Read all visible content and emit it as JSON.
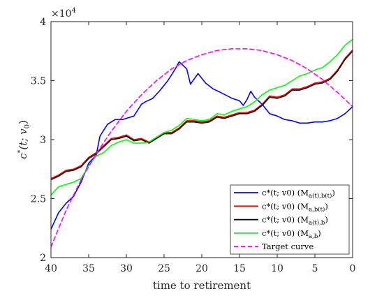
{
  "chart_data": {
    "type": "line",
    "title": "",
    "xlabel": "time to retirement",
    "ylabel": "c*(t; v0)",
    "ylabel_parts": {
      "base": "c",
      "star": "*",
      "args": "(t; v",
      "args_sub": "0",
      "args_close": ")"
    },
    "x_reversed": true,
    "xlim": [
      0,
      40
    ],
    "ylim": [
      2.0,
      4.0
    ],
    "y_exponent_label": {
      "base": "×10",
      "exp": "4"
    },
    "x_ticks": [
      "40",
      "35",
      "30",
      "25",
      "20",
      "15",
      "10",
      "5",
      "0"
    ],
    "x_tick_values": [
      40,
      35,
      30,
      25,
      20,
      15,
      10,
      5,
      0
    ],
    "y_ticks": [
      "2",
      "2.5",
      "3",
      "3.5",
      "4"
    ],
    "y_tick_values": [
      2.0,
      2.5,
      3.0,
      3.5,
      4.0
    ],
    "grid": false,
    "legend_position": "bottom-right",
    "series": [
      {
        "name": "c*(t;v0) (M_{a(t),b(t)})",
        "legend": {
          "pre": "c*(t; v0) (M",
          "sub": "a(t),b(t)",
          "post": ")"
        },
        "color": "#0000ff",
        "style": "solid",
        "x": [
          40,
          39,
          38,
          37,
          36,
          35,
          34,
          33.5,
          32.5,
          31.5,
          30.5,
          29,
          28,
          27.5,
          26.5,
          25.5,
          24.5,
          23.5,
          23,
          22.5,
          22,
          21.5,
          20.5,
          19.5,
          18.5,
          17.5,
          16,
          15,
          14.5,
          14,
          13.5,
          13,
          12,
          11,
          10,
          9,
          8,
          7,
          6,
          5,
          4,
          3,
          2,
          1,
          0
        ],
        "y": [
          2.24,
          2.38,
          2.46,
          2.52,
          2.64,
          2.8,
          2.87,
          3.03,
          3.13,
          3.17,
          3.17,
          3.2,
          3.3,
          3.32,
          3.35,
          3.42,
          3.5,
          3.6,
          3.66,
          3.63,
          3.6,
          3.47,
          3.56,
          3.48,
          3.43,
          3.4,
          3.35,
          3.33,
          3.29,
          3.34,
          3.41,
          3.36,
          3.3,
          3.22,
          3.2,
          3.17,
          3.16,
          3.14,
          3.14,
          3.15,
          3.15,
          3.16,
          3.18,
          3.22,
          3.28
        ]
      },
      {
        "name": "c*(t;v0) (M_{a,b(t)})",
        "legend": {
          "pre": "c*(t; v0) (M",
          "sub": "a,b(t)",
          "post": ")"
        },
        "color": "#ff0000",
        "style": "solid",
        "x": [
          40,
          39,
          38,
          37,
          36,
          35,
          34,
          33,
          32,
          31,
          30,
          29,
          28,
          27,
          26,
          25,
          24,
          23,
          22,
          21,
          20,
          19,
          18,
          17,
          16,
          15,
          14,
          13,
          12,
          11,
          10,
          9,
          8,
          7,
          6,
          5,
          4,
          3,
          2,
          1,
          0
        ],
        "y": [
          2.67,
          2.7,
          2.74,
          2.75,
          2.78,
          2.85,
          2.89,
          2.95,
          3.01,
          3.02,
          3.04,
          3.0,
          3.01,
          2.98,
          3.02,
          3.06,
          3.06,
          3.1,
          3.16,
          3.16,
          3.15,
          3.16,
          3.2,
          3.19,
          3.21,
          3.23,
          3.23,
          3.25,
          3.3,
          3.37,
          3.36,
          3.38,
          3.43,
          3.43,
          3.45,
          3.48,
          3.49,
          3.52,
          3.59,
          3.69,
          3.76
        ]
      },
      {
        "name": "c*(t;v0) (M_{a(t),b})",
        "legend": {
          "pre": "c*(t; v0) (M",
          "sub": "a(t),b",
          "post": ")"
        },
        "color": "#000000",
        "style": "solid",
        "x": [
          40,
          39,
          38,
          37,
          36,
          35,
          34,
          33,
          32,
          31,
          30,
          29,
          28,
          27,
          26,
          25,
          24,
          23,
          22,
          21,
          20,
          19,
          18,
          17,
          16,
          15,
          14,
          13,
          12,
          11,
          10,
          9,
          8,
          7,
          6,
          5,
          4,
          3,
          2,
          1,
          0
        ],
        "y": [
          2.66,
          2.69,
          2.73,
          2.74,
          2.77,
          2.84,
          2.88,
          2.94,
          3.0,
          3.01,
          3.03,
          2.99,
          3.0,
          2.97,
          3.01,
          3.05,
          3.05,
          3.09,
          3.15,
          3.15,
          3.14,
          3.15,
          3.19,
          3.18,
          3.2,
          3.22,
          3.22,
          3.24,
          3.29,
          3.36,
          3.35,
          3.37,
          3.42,
          3.42,
          3.44,
          3.47,
          3.48,
          3.51,
          3.58,
          3.68,
          3.75
        ]
      },
      {
        "name": "c*(t;v0) (M_{a,b})",
        "legend": {
          "pre": "c*(t; v0) (M",
          "sub": "a,b",
          "post": ")"
        },
        "color": "#00ff00",
        "style": "solid",
        "x": [
          40,
          39,
          38,
          37,
          36,
          35,
          34,
          33,
          32,
          31,
          30,
          29,
          28,
          27,
          26,
          25,
          24,
          23,
          22,
          21,
          20,
          19,
          18,
          17,
          16,
          15,
          14,
          13,
          12,
          11,
          10,
          9,
          8,
          7,
          6,
          5,
          4,
          3,
          2,
          1,
          0
        ],
        "y": [
          2.53,
          2.6,
          2.62,
          2.64,
          2.67,
          2.78,
          2.86,
          2.89,
          2.95,
          2.98,
          3.0,
          2.97,
          2.97,
          2.98,
          3.02,
          3.06,
          3.08,
          3.12,
          3.18,
          3.17,
          3.16,
          3.17,
          3.22,
          3.21,
          3.24,
          3.26,
          3.28,
          3.32,
          3.38,
          3.42,
          3.44,
          3.46,
          3.5,
          3.54,
          3.56,
          3.59,
          3.61,
          3.66,
          3.72,
          3.8,
          3.85
        ]
      },
      {
        "name": "Target curve",
        "legend": {
          "pre": "Target curve",
          "sub": "",
          "post": ""
        },
        "color": "#ff00ff",
        "style": "dashed",
        "x": [
          40,
          38,
          36,
          34,
          32,
          30,
          28,
          26,
          24,
          22,
          20,
          18,
          16,
          14,
          12,
          10,
          8,
          6,
          4,
          2,
          0
        ],
        "y": [
          2.09,
          2.4,
          2.66,
          2.88,
          3.07,
          3.24,
          3.38,
          3.5,
          3.6,
          3.67,
          3.72,
          3.755,
          3.77,
          3.77,
          3.755,
          3.72,
          3.67,
          3.6,
          3.51,
          3.4,
          3.28
        ]
      }
    ]
  }
}
